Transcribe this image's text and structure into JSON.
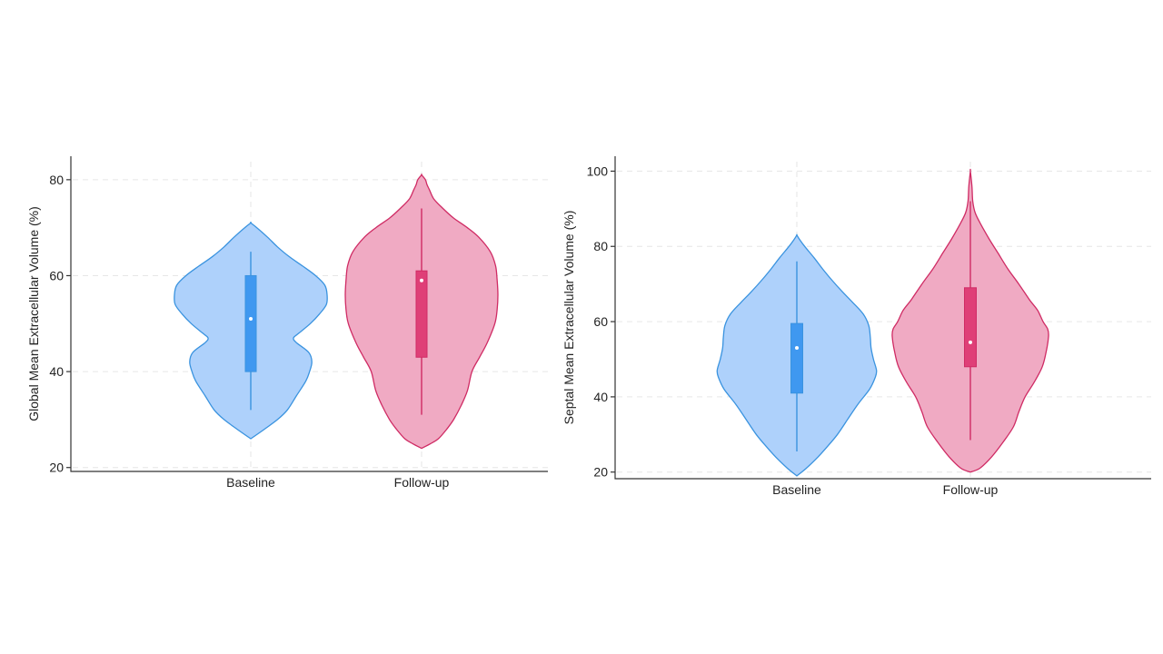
{
  "colors": {
    "baseline_fill": "#aed1fb",
    "baseline_line": "#3a93df",
    "baseline_box": "#3f98f0",
    "followup_fill": "#f0aac3",
    "followup_line": "#cf2b64",
    "followup_box": "#df3f77"
  },
  "chart_data": [
    {
      "type": "violin",
      "ylabel": "Global Mean Extracellular Volume (%)",
      "categories": [
        "Baseline",
        "Follow-up"
      ],
      "ylim": [
        19,
        83
      ],
      "yticks": [
        20,
        40,
        60,
        80
      ],
      "grid": true,
      "series": [
        {
          "category": "Baseline",
          "median": 51,
          "q1": 40,
          "q3": 60,
          "whisker_low": 32,
          "whisker_high": 65,
          "range": [
            26,
            71
          ],
          "density_profile": [
            [
              26,
              0
            ],
            [
              28,
              0.18
            ],
            [
              30,
              0.35
            ],
            [
              32,
              0.48
            ],
            [
              35,
              0.6
            ],
            [
              38,
              0.72
            ],
            [
              40,
              0.77
            ],
            [
              42,
              0.8
            ],
            [
              44,
              0.76
            ],
            [
              46,
              0.6
            ],
            [
              47,
              0.56
            ],
            [
              48,
              0.63
            ],
            [
              50,
              0.78
            ],
            [
              52,
              0.9
            ],
            [
              54,
              0.99
            ],
            [
              56,
              1.0
            ],
            [
              58,
              0.97
            ],
            [
              60,
              0.85
            ],
            [
              62,
              0.68
            ],
            [
              64,
              0.5
            ],
            [
              66,
              0.35
            ],
            [
              68,
              0.22
            ],
            [
              70,
              0.08
            ],
            [
              71,
              0
            ]
          ]
        },
        {
          "category": "Follow-up",
          "median": 59,
          "q1": 43,
          "q3": 61,
          "whisker_low": 31,
          "whisker_high": 74,
          "range": [
            24,
            81
          ],
          "density_profile": [
            [
              24,
              0
            ],
            [
              25,
              0.12
            ],
            [
              26,
              0.22
            ],
            [
              28,
              0.33
            ],
            [
              30,
              0.42
            ],
            [
              33,
              0.52
            ],
            [
              36,
              0.6
            ],
            [
              40,
              0.66
            ],
            [
              43,
              0.76
            ],
            [
              46,
              0.86
            ],
            [
              50,
              0.96
            ],
            [
              53,
              0.99
            ],
            [
              56,
              1.0
            ],
            [
              59,
              0.99
            ],
            [
              62,
              0.97
            ],
            [
              65,
              0.9
            ],
            [
              68,
              0.75
            ],
            [
              70,
              0.6
            ],
            [
              72,
              0.42
            ],
            [
              74,
              0.28
            ],
            [
              76,
              0.16
            ],
            [
              78,
              0.1
            ],
            [
              79,
              0.07
            ],
            [
              80,
              0.05
            ],
            [
              81,
              0
            ]
          ]
        }
      ]
    },
    {
      "type": "violin",
      "ylabel": "Septal Mean Extracellular Volume (%)",
      "categories": [
        "Baseline",
        "Follow-up"
      ],
      "ylim": [
        18,
        103
      ],
      "yticks": [
        20,
        40,
        60,
        80,
        100
      ],
      "grid": true,
      "series": [
        {
          "category": "Baseline",
          "median": 53,
          "q1": 41,
          "q3": 59.5,
          "whisker_low": 25.5,
          "whisker_high": 76,
          "range": [
            19,
            83
          ],
          "density_profile": [
            [
              19,
              0
            ],
            [
              21,
              0.12
            ],
            [
              24,
              0.27
            ],
            [
              27,
              0.4
            ],
            [
              30,
              0.52
            ],
            [
              34,
              0.65
            ],
            [
              38,
              0.78
            ],
            [
              42,
              0.93
            ],
            [
              45,
              1.0
            ],
            [
              47,
              1.02
            ],
            [
              50,
              0.98
            ],
            [
              53,
              0.95
            ],
            [
              56,
              0.94
            ],
            [
              59,
              0.92
            ],
            [
              62,
              0.85
            ],
            [
              65,
              0.72
            ],
            [
              68,
              0.58
            ],
            [
              71,
              0.45
            ],
            [
              74,
              0.33
            ],
            [
              77,
              0.22
            ],
            [
              80,
              0.1
            ],
            [
              82,
              0.03
            ],
            [
              83,
              0
            ]
          ]
        },
        {
          "category": "Follow-up",
          "median": 54.5,
          "q1": 48,
          "q3": 69,
          "whisker_low": 28.5,
          "whisker_high": 92,
          "range": [
            20,
            100
          ],
          "density_profile": [
            [
              20,
              0
            ],
            [
              21,
              0.12
            ],
            [
              24,
              0.27
            ],
            [
              28,
              0.42
            ],
            [
              32,
              0.55
            ],
            [
              36,
              0.62
            ],
            [
              40,
              0.7
            ],
            [
              44,
              0.82
            ],
            [
              48,
              0.92
            ],
            [
              52,
              0.97
            ],
            [
              56,
              1.0
            ],
            [
              58,
              0.99
            ],
            [
              60,
              0.93
            ],
            [
              63,
              0.86
            ],
            [
              66,
              0.75
            ],
            [
              70,
              0.62
            ],
            [
              74,
              0.48
            ],
            [
              78,
              0.36
            ],
            [
              82,
              0.24
            ],
            [
              86,
              0.13
            ],
            [
              89,
              0.06
            ],
            [
              92,
              0.03
            ],
            [
              96,
              0.02
            ],
            [
              100,
              0
            ]
          ]
        }
      ]
    }
  ]
}
